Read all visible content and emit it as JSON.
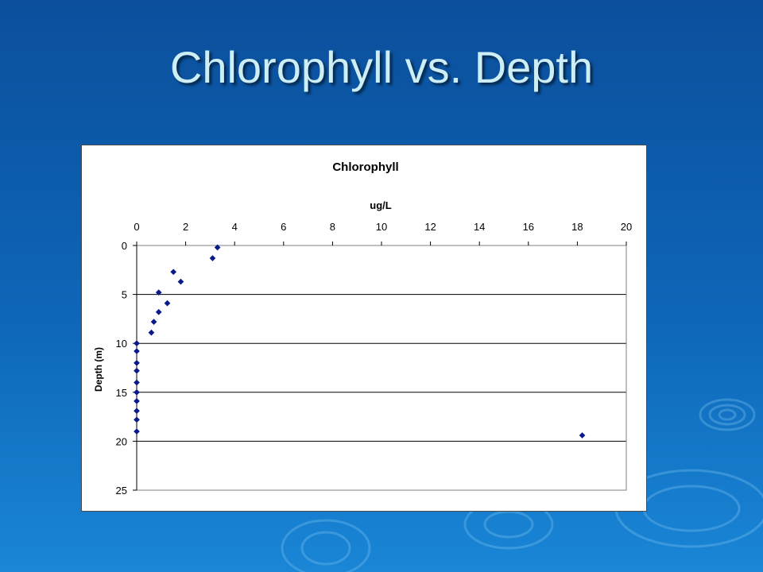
{
  "slide": {
    "title": "Chlorophyll vs. Depth"
  },
  "chart_data": {
    "type": "scatter",
    "title": "Chlorophyll",
    "xlabel": "ug/L",
    "ylabel": "Depth (m)",
    "xlim": [
      0,
      20
    ],
    "ylim": [
      0,
      25
    ],
    "x_ticks": [
      "0",
      "2",
      "4",
      "6",
      "8",
      "10",
      "12",
      "14",
      "16",
      "18",
      "20"
    ],
    "y_ticks": [
      "0",
      "5",
      "10",
      "15",
      "20",
      "25"
    ],
    "x_axis_position": "top",
    "y_reversed": true,
    "grid": "horizontal",
    "marker": "diamond",
    "marker_color": "#0a1a8a",
    "points": [
      {
        "x": 3.3,
        "y": 0.2
      },
      {
        "x": 3.1,
        "y": 1.3
      },
      {
        "x": 1.5,
        "y": 2.7
      },
      {
        "x": 1.8,
        "y": 3.7
      },
      {
        "x": 0.9,
        "y": 4.8
      },
      {
        "x": 1.25,
        "y": 5.9
      },
      {
        "x": 0.9,
        "y": 6.8
      },
      {
        "x": 0.7,
        "y": 7.8
      },
      {
        "x": 0.6,
        "y": 8.9
      },
      {
        "x": 0.0,
        "y": 10.0
      },
      {
        "x": 0.0,
        "y": 10.8
      },
      {
        "x": 0.0,
        "y": 12.0
      },
      {
        "x": 0.0,
        "y": 12.8
      },
      {
        "x": 0.0,
        "y": 14.0
      },
      {
        "x": 0.0,
        "y": 15.0
      },
      {
        "x": 0.0,
        "y": 15.9
      },
      {
        "x": 0.0,
        "y": 16.9
      },
      {
        "x": 0.0,
        "y": 17.8
      },
      {
        "x": 0.0,
        "y": 19.0
      },
      {
        "x": 18.2,
        "y": 19.4
      }
    ]
  }
}
